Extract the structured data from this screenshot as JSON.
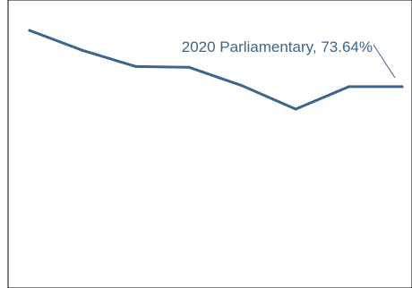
{
  "chart_data": {
    "type": "line",
    "title": "",
    "xlabel": "",
    "ylabel": "",
    "grid": false,
    "legend": "none",
    "series": [
      {
        "values": [
          84.0,
          81.5,
          79.5,
          79.4,
          77.1,
          74.2,
          77.0,
          77.0
        ]
      }
    ],
    "annotation": {
      "text": "2020 Parliamentary, 73.64%"
    },
    "line_color": "#3a6690",
    "axis_color": "#000000"
  }
}
